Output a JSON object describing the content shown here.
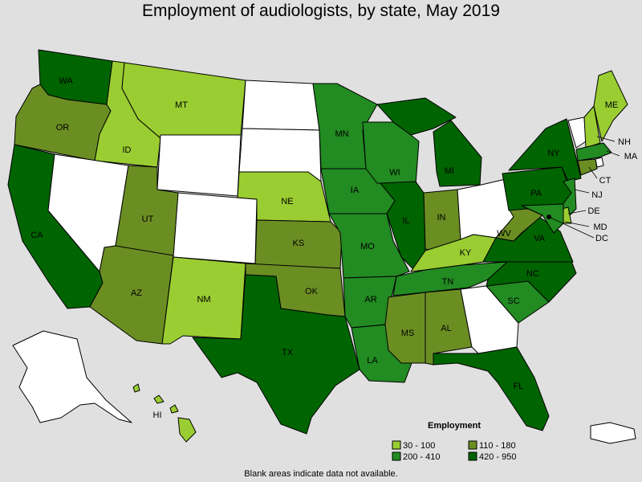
{
  "title": "Employment of audiologists, by state, May 2019",
  "footnote": "Blank areas indicate data not available.",
  "legend": {
    "title": "Employment",
    "items": [
      {
        "label": "30 - 100",
        "color": "#9acd32"
      },
      {
        "label": "110 - 180",
        "color": "#6b8e23"
      },
      {
        "label": "200 - 410",
        "color": "#228b22"
      },
      {
        "label": "420 - 950",
        "color": "#006400"
      }
    ]
  },
  "colors": {
    "no_data": "#ffffff",
    "c1": "#9acd32",
    "c2": "#6b8e23",
    "c3": "#228b22",
    "c4": "#006400",
    "background": "#e0e0e0"
  },
  "states": {
    "WA": {
      "label": "WA",
      "range": "420 - 950"
    },
    "OR": {
      "label": "OR",
      "range": "110 - 180"
    },
    "CA": {
      "label": "CA",
      "range": "420 - 950"
    },
    "ID": {
      "label": "ID",
      "range": "30 - 100"
    },
    "NV": {
      "label": "",
      "range": ""
    },
    "MT": {
      "label": "MT",
      "range": "30 - 100"
    },
    "WY": {
      "label": "",
      "range": ""
    },
    "UT": {
      "label": "UT",
      "range": "110 - 180"
    },
    "AZ": {
      "label": "AZ",
      "range": "110 - 180"
    },
    "CO": {
      "label": "",
      "range": ""
    },
    "NM": {
      "label": "NM",
      "range": "30 - 100"
    },
    "ND": {
      "label": "",
      "range": ""
    },
    "SD": {
      "label": "",
      "range": ""
    },
    "NE": {
      "label": "NE",
      "range": "30 - 100"
    },
    "KS": {
      "label": "KS",
      "range": "110 - 180"
    },
    "OK": {
      "label": "OK",
      "range": "110 - 180"
    },
    "TX": {
      "label": "TX",
      "range": "420 - 950"
    },
    "MN": {
      "label": "MN",
      "range": "200 - 410"
    },
    "IA": {
      "label": "IA",
      "range": "200 - 410"
    },
    "MO": {
      "label": "MO",
      "range": "200 - 410"
    },
    "AR": {
      "label": "AR",
      "range": "200 - 410"
    },
    "LA": {
      "label": "LA",
      "range": "200 - 410"
    },
    "WI": {
      "label": "WI",
      "range": "200 - 410"
    },
    "IL": {
      "label": "IL",
      "range": "420 - 950"
    },
    "MI": {
      "label": "MI",
      "range": "420 - 950"
    },
    "IN": {
      "label": "IN",
      "range": "110 - 180"
    },
    "OH": {
      "label": "",
      "range": ""
    },
    "KY": {
      "label": "KY",
      "range": "30 - 100"
    },
    "TN": {
      "label": "TN",
      "range": "200 - 410"
    },
    "MS": {
      "label": "MS",
      "range": "110 - 180"
    },
    "AL": {
      "label": "AL",
      "range": "110 - 180"
    },
    "GA": {
      "label": "",
      "range": ""
    },
    "FL": {
      "label": "FL",
      "range": "420 - 950"
    },
    "SC": {
      "label": "SC",
      "range": "200 - 410"
    },
    "NC": {
      "label": "NC",
      "range": "420 - 950"
    },
    "VA": {
      "label": "VA",
      "range": "420 - 950"
    },
    "WV": {
      "label": "WV",
      "range": "110 - 180"
    },
    "PA": {
      "label": "PA",
      "range": "420 - 950"
    },
    "NY": {
      "label": "NY",
      "range": "420 - 950"
    },
    "VT": {
      "label": "",
      "range": ""
    },
    "NH": {
      "label": "NH",
      "range": "30 - 100"
    },
    "ME": {
      "label": "ME",
      "range": "30 - 100"
    },
    "MA": {
      "label": "MA",
      "range": "200 - 410"
    },
    "RI": {
      "label": "",
      "range": ""
    },
    "CT": {
      "label": "CT",
      "range": "110 - 180"
    },
    "NJ": {
      "label": "NJ",
      "range": "200 - 410"
    },
    "DE": {
      "label": "DE",
      "range": "30 - 100"
    },
    "MD": {
      "label": "MD",
      "range": "200 - 410"
    },
    "DC": {
      "label": "DC",
      "range": ""
    },
    "AK": {
      "label": "",
      "range": ""
    },
    "HI": {
      "label": "HI",
      "range": "30 - 100"
    },
    "PR": {
      "label": "",
      "range": ""
    }
  }
}
